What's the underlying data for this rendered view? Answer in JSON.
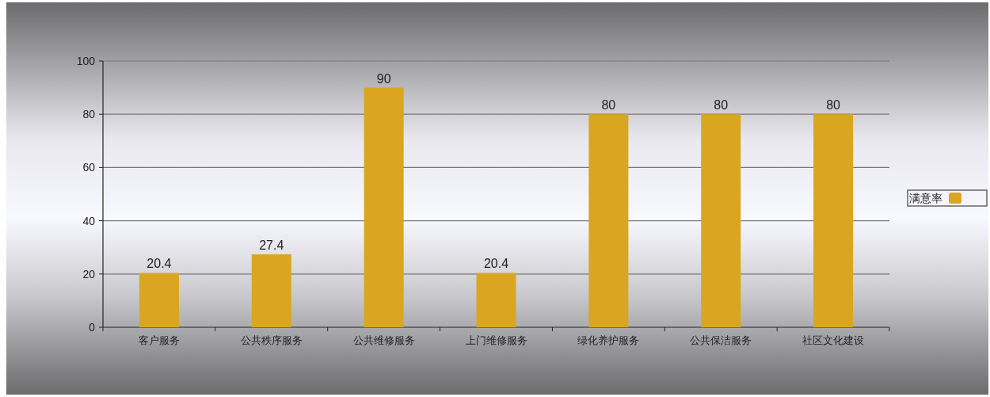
{
  "chart_data": {
    "type": "bar",
    "categories": [
      "客户服务",
      "公共秩序服务",
      "公共维修服务",
      "上门维修服务",
      "绿化养护服务",
      "公共保洁服务",
      "社区文化建设"
    ],
    "series": [
      {
        "name": "满意率",
        "color": "#daa520",
        "values": [
          20.4,
          27.4,
          90,
          20.4,
          80,
          80,
          80
        ]
      }
    ],
    "ylim": [
      0,
      100
    ],
    "yticks": [
      0,
      20,
      40,
      60,
      80,
      100
    ],
    "grid": "y",
    "legend": "right",
    "data_labels": true
  }
}
